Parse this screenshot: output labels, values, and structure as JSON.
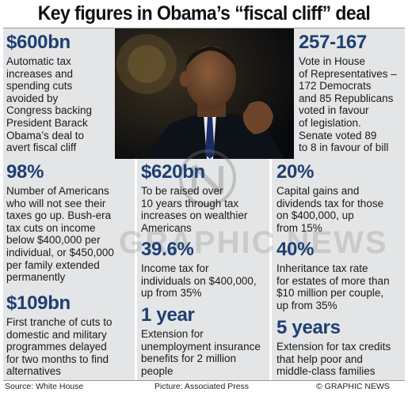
{
  "title": "Key figures in Obama’s “fiscal cliff” deal",
  "photo": {
    "description_icon": "portrait-photo-icon"
  },
  "stats": {
    "s600bn": {
      "figure": "$600bn",
      "lines": [
        "Automatic tax",
        "increases and",
        "spending cuts",
        "avoided by",
        "Congress backing",
        "President Barack",
        "Obama’s deal to",
        "avert fiscal cliff"
      ]
    },
    "s257": {
      "figure": "257-167",
      "lines": [
        "Vote in House",
        "of Representatives –",
        "172 Democrats",
        "and 85 Republicans",
        "voted in favour",
        "of legislation.",
        "Senate voted 89",
        "to 8 in favour of bill"
      ]
    },
    "s98": {
      "figure": "98%",
      "lines": [
        "Number of Americans",
        "who will not see their",
        "taxes go up. Bush-era",
        "tax cuts on income",
        "below $400,000 per",
        "individual, or $450,000",
        "per family extended",
        "permanently"
      ]
    },
    "s620bn": {
      "figure": "$620bn",
      "lines": [
        "To be raised over",
        "10 years through tax",
        "increases on wealthier",
        "Americans"
      ]
    },
    "s20": {
      "figure": "20%",
      "lines": [
        "Capital gains and",
        "dividends tax for those",
        "on $400,000, up",
        "from 15%"
      ]
    },
    "s396": {
      "figure": "39.6%",
      "lines": [
        "Income tax for",
        "individuals on $400,000,",
        "up from 35%"
      ]
    },
    "s40": {
      "figure": "40%",
      "lines": [
        "Inheritance tax rate",
        "for estates of more than",
        "$10 million per couple,",
        "up from 35%"
      ]
    },
    "s109bn": {
      "figure": "$109bn",
      "lines": [
        "First tranche of cuts to",
        "domestic and military",
        "programmes delayed",
        "for two months to find",
        "alternatives"
      ]
    },
    "s1year": {
      "figure": "1 year",
      "lines": [
        "Extension for",
        "unemployment insurance",
        "benefits for 2 million",
        "people"
      ]
    },
    "s5years": {
      "figure": "5 years",
      "lines": [
        "Extension for tax credits",
        "that help poor and",
        "middle-class families"
      ]
    }
  },
  "watermark": "GRAPHIC NEWS",
  "footer": {
    "source": "Source: White House",
    "picture": "Picture: Associated Press",
    "credit": "© GRAPHIC NEWS"
  },
  "colors": {
    "figure": "#1d3f73",
    "panel": "#e4e5e6"
  }
}
